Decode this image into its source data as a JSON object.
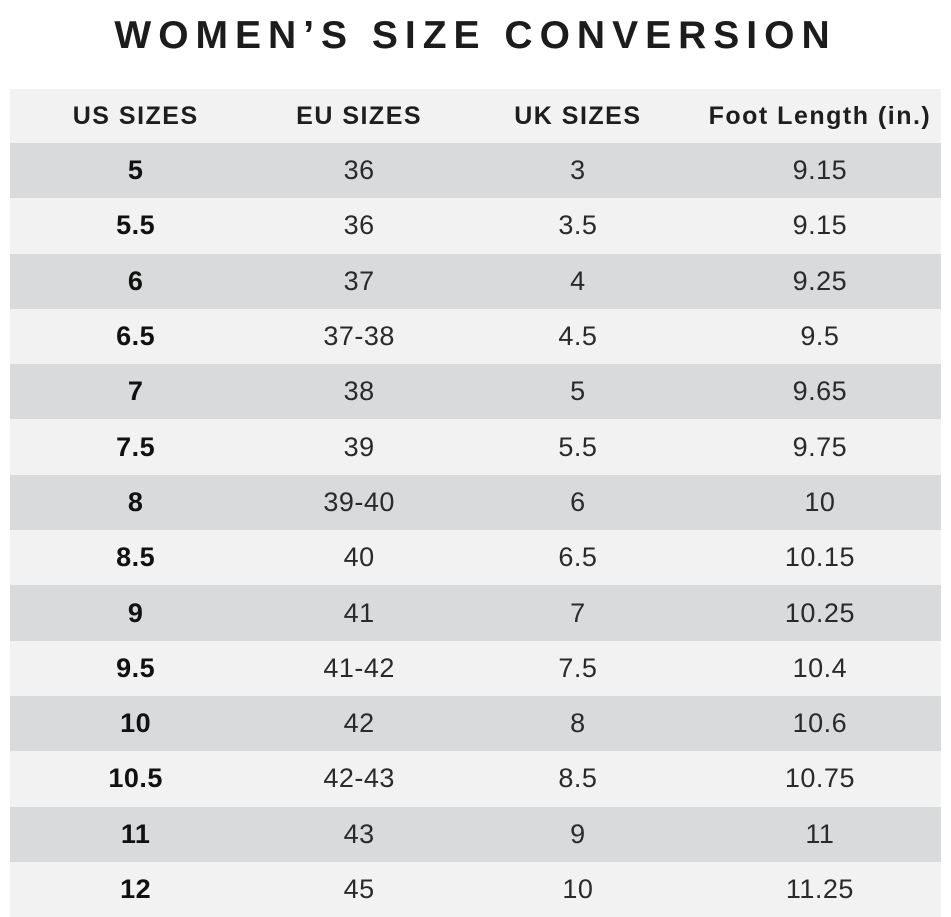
{
  "chart_data": {
    "type": "table",
    "title": "WOMEN’S SIZE CONVERSION",
    "columns": [
      "US SIZES",
      "EU SIZES",
      "UK SIZES",
      "Foot Length (in.)"
    ],
    "rows": [
      [
        "5",
        "36",
        "3",
        "9.15"
      ],
      [
        "5.5",
        "36",
        "3.5",
        "9.15"
      ],
      [
        "6",
        "37",
        "4",
        "9.25"
      ],
      [
        "6.5",
        "37-38",
        "4.5",
        "9.5"
      ],
      [
        "7",
        "38",
        "5",
        "9.65"
      ],
      [
        "7.5",
        "39",
        "5.5",
        "9.75"
      ],
      [
        "8",
        "39-40",
        "6",
        "10"
      ],
      [
        "8.5",
        "40",
        "6.5",
        "10.15"
      ],
      [
        "9",
        "41",
        "7",
        "10.25"
      ],
      [
        "9.5",
        "41-42",
        "7.5",
        "10.4"
      ],
      [
        "10",
        "42",
        "8",
        "10.6"
      ],
      [
        "10.5",
        "42-43",
        "8.5",
        "10.75"
      ],
      [
        "11",
        "43",
        "9",
        "11"
      ],
      [
        "12",
        "45",
        "10",
        "11.25"
      ]
    ],
    "layout": {
      "row_striping": "alternating",
      "stripe_color_odd": "#d9dadc",
      "stripe_color_even": "#f2f2f3",
      "header_bg": "#f2f2f3",
      "text_color": "#2a2a2a",
      "background": "#ffffff"
    }
  }
}
